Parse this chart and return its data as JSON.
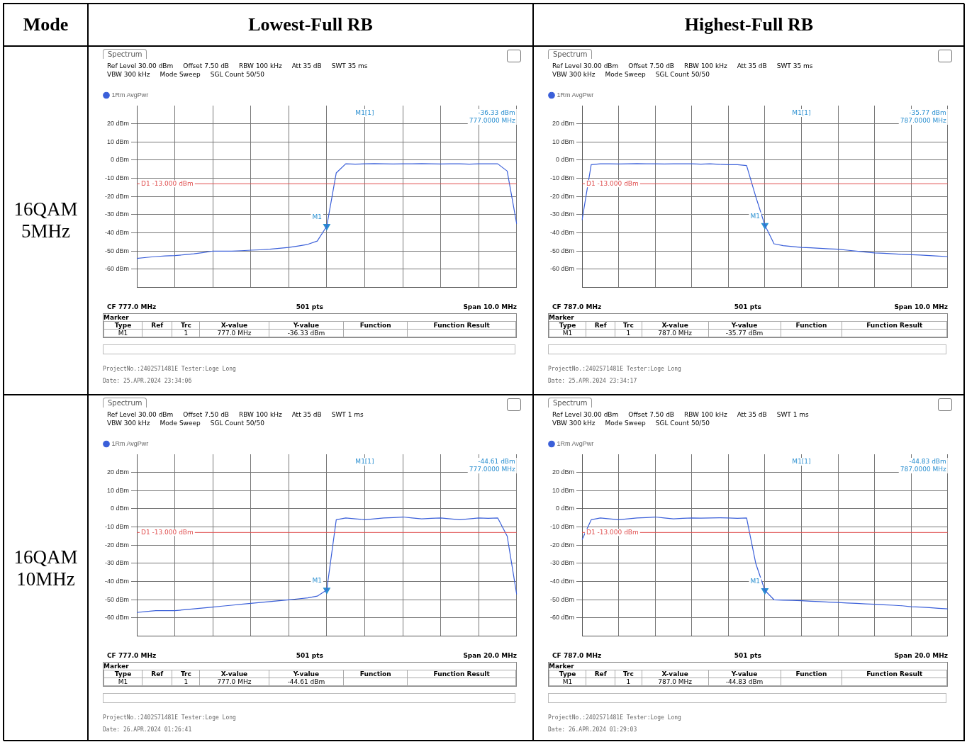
{
  "chart_data": [
    {
      "type": "line",
      "title": "Lowest-Full RB",
      "ylabel": "16QAM\n5MHz",
      "categories": [
        null,
        null,
        null,
        null,
        null,
        null,
        null,
        null,
        null,
        null,
        null,
        null,
        null,
        null,
        null,
        null,
        null,
        null,
        null,
        null,
        null,
        null,
        null,
        null,
        null,
        null,
        null,
        null,
        null,
        null,
        null,
        null,
        null,
        null,
        null,
        null,
        null,
        null,
        null,
        null,
        null
      ],
      "series": [
        {
          "name": "1Rm AvgPwr",
          "color": "#3a5fd9",
          "values": [
            -54,
            -53.5,
            -53,
            -52.7,
            -52.5,
            -52,
            -51.5,
            -50.8,
            -50,
            -50,
            -50,
            -49.8,
            -49.5,
            -49.3,
            -49,
            -48.5,
            -48,
            -47.2,
            -46.3,
            -44.5,
            -36.33,
            -7,
            -2,
            -2.2,
            -2,
            -1.9,
            -2,
            -2.1,
            -2,
            -2,
            -1.9,
            -2,
            -2.1,
            -2,
            -2,
            -2.2,
            -2,
            -2,
            -2,
            -6,
            -35
          ]
        },
        {
          "name": "M1",
          "type": "scatter",
          "marker": "triangle",
          "color": "#2a8fd0",
          "values": [
            null,
            null,
            null,
            null,
            null,
            null,
            null,
            null,
            null,
            null,
            null,
            null,
            null,
            null,
            null,
            null,
            null,
            null,
            null,
            null,
            -36.33,
            null,
            null,
            null,
            null,
            null,
            null,
            null,
            null,
            null,
            null,
            null,
            null,
            null,
            null,
            null,
            null,
            null,
            null,
            null,
            null
          ]
        }
      ],
      "ylim": [
        -70,
        30
      ],
      "yticks": [
        {
          "value": 20,
          "label": "20 dBm"
        },
        {
          "value": 10,
          "label": "10 dBm"
        },
        {
          "value": 0,
          "label": "0 dBm"
        },
        {
          "value": -10,
          "label": "-10 dBm"
        },
        {
          "value": -20,
          "label": "-20 dBm"
        },
        {
          "value": -30,
          "label": "-30 dBm"
        },
        {
          "value": -40,
          "label": "-40 dBm"
        },
        {
          "value": -50,
          "label": "-50 dBm"
        },
        {
          "value": -60,
          "label": "-60 dBm"
        }
      ],
      "grid": true,
      "legend": "top left",
      "ref_lines": [
        {
          "axis": "y",
          "value": -13,
          "label": "D1 -13.000 dBm",
          "color": "#e05050"
        }
      ],
      "annotations": [
        "Spectrum",
        "Ref Level 30.00 dBm",
        "Offset 7.50 dB",
        "RBW 100 kHz",
        "Att 35 dB",
        "SWT 35 ms",
        "VBW 300 kHz",
        "Mode Sweep",
        "SGL Count 50/50",
        "M1[1]",
        "-36.33 dBm",
        "777.0000 MHz",
        "CF 777.0 MHz",
        "501 pts",
        "Span 10.0 MHz",
        "Marker",
        "Type",
        "Ref",
        "Trc",
        "X-value",
        "Y-value",
        "Function",
        "Function Result",
        "M1",
        "1",
        "777.0 MHz",
        "-36.33 dBm",
        "ProjectNo.:2402S71481E  Tester:Loge Long",
        "Date: 25.APR.2024  23:34:06",
        "Mode"
      ]
    },
    {
      "type": "line",
      "title": "Highest-Full RB",
      "categories": [
        null,
        null,
        null,
        null,
        null,
        null,
        null,
        null,
        null,
        null,
        null,
        null,
        null,
        null,
        null,
        null,
        null,
        null,
        null,
        null,
        null,
        null,
        null,
        null,
        null,
        null,
        null,
        null,
        null,
        null,
        null,
        null,
        null,
        null,
        null,
        null,
        null,
        null,
        null,
        null,
        null
      ],
      "series": [
        {
          "name": "1Rm AvgPwr",
          "color": "#3a5fd9",
          "values": [
            -33,
            -2.5,
            -2,
            -2,
            -2.1,
            -2,
            -1.9,
            -2,
            -2,
            -2.1,
            -2,
            -2,
            -2,
            -2.2,
            -2,
            -2.3,
            -2.5,
            -2.5,
            -3,
            -20,
            -35.77,
            -46,
            -47,
            -47.5,
            -48,
            -48.2,
            -48.5,
            -48.8,
            -49,
            -49.5,
            -50,
            -50.5,
            -51,
            -51.2,
            -51.5,
            -51.8,
            -52,
            -52.2,
            -52.5,
            -52.8,
            -53
          ]
        },
        {
          "name": "M1",
          "type": "scatter",
          "marker": "triangle",
          "color": "#2a8fd0",
          "values": [
            null,
            null,
            null,
            null,
            null,
            null,
            null,
            null,
            null,
            null,
            null,
            null,
            null,
            null,
            null,
            null,
            null,
            null,
            null,
            null,
            -35.77,
            null,
            null,
            null,
            null,
            null,
            null,
            null,
            null,
            null,
            null,
            null,
            null,
            null,
            null,
            null,
            null,
            null,
            null,
            null,
            null
          ]
        }
      ],
      "ylim": [
        -70,
        30
      ],
      "yticks": [
        {
          "value": 20,
          "label": "20 dBm"
        },
        {
          "value": 10,
          "label": "10 dBm"
        },
        {
          "value": 0,
          "label": "0 dBm"
        },
        {
          "value": -10,
          "label": "-10 dBm"
        },
        {
          "value": -20,
          "label": "-20 dBm"
        },
        {
          "value": -30,
          "label": "-30 dBm"
        },
        {
          "value": -40,
          "label": "-40 dBm"
        },
        {
          "value": -50,
          "label": "-50 dBm"
        },
        {
          "value": -60,
          "label": "-60 dBm"
        }
      ],
      "grid": true,
      "legend": "top left",
      "ref_lines": [
        {
          "axis": "y",
          "value": -13,
          "label": "D1 -13.000 dBm",
          "color": "#e05050"
        }
      ],
      "annotations": [
        "Spectrum",
        "Ref Level 30.00 dBm",
        "Offset 7.50 dB",
        "RBW 100 kHz",
        "Att 35 dB",
        "SWT 35 ms",
        "VBW 300 kHz",
        "Mode Sweep",
        "SGL Count 50/50",
        "M1[1]",
        "-35.77 dBm",
        "787.0000 MHz",
        "CF 787.0 MHz",
        "501 pts",
        "Span 10.0 MHz",
        "Marker",
        "Type",
        "Ref",
        "Trc",
        "X-value",
        "Y-value",
        "Function",
        "Function Result",
        "M1",
        "1",
        "787.0 MHz",
        "-35.77 dBm",
        "ProjectNo.:2402S71481E  Tester:Loge Long",
        "Date: 25.APR.2024  23:34:17"
      ]
    },
    {
      "type": "line",
      "ylabel": "16QAM\n10MHz",
      "categories": [
        null,
        null,
        null,
        null,
        null,
        null,
        null,
        null,
        null,
        null,
        null,
        null,
        null,
        null,
        null,
        null,
        null,
        null,
        null,
        null,
        null,
        null,
        null,
        null,
        null,
        null,
        null,
        null,
        null,
        null,
        null,
        null,
        null,
        null,
        null,
        null,
        null,
        null,
        null,
        null,
        null
      ],
      "series": [
        {
          "name": "1Rm AvgPwr",
          "color": "#3a5fd9",
          "values": [
            -57,
            -56.5,
            -56,
            -56,
            -56,
            -55.5,
            -55,
            -54.5,
            -54,
            -53.5,
            -53,
            -52.5,
            -52,
            -51.5,
            -51,
            -50.5,
            -50,
            -49.5,
            -49,
            -48,
            -44.61,
            -6,
            -5,
            -5.5,
            -6,
            -5.5,
            -5,
            -4.8,
            -4.5,
            -5,
            -5.5,
            -5.2,
            -5,
            -5.5,
            -6,
            -5.5,
            -5,
            -5.2,
            -5,
            -15,
            -47
          ]
        },
        {
          "name": "M1",
          "type": "scatter",
          "marker": "triangle",
          "color": "#2a8fd0",
          "values": [
            null,
            null,
            null,
            null,
            null,
            null,
            null,
            null,
            null,
            null,
            null,
            null,
            null,
            null,
            null,
            null,
            null,
            null,
            null,
            null,
            -44.61,
            null,
            null,
            null,
            null,
            null,
            null,
            null,
            null,
            null,
            null,
            null,
            null,
            null,
            null,
            null,
            null,
            null,
            null,
            null,
            null
          ]
        }
      ],
      "ylim": [
        -70,
        30
      ],
      "yticks": [
        {
          "value": 20,
          "label": "20 dBm"
        },
        {
          "value": 10,
          "label": "10 dBm"
        },
        {
          "value": 0,
          "label": "0 dBm"
        },
        {
          "value": -10,
          "label": "-10 dBm"
        },
        {
          "value": -20,
          "label": "-20 dBm"
        },
        {
          "value": -30,
          "label": "-30 dBm"
        },
        {
          "value": -40,
          "label": "-40 dBm"
        },
        {
          "value": -50,
          "label": "-50 dBm"
        },
        {
          "value": -60,
          "label": "-60 dBm"
        }
      ],
      "grid": true,
      "legend": "top left",
      "ref_lines": [
        {
          "axis": "y",
          "value": -13,
          "label": "D1 -13.000 dBm",
          "color": "#e05050"
        }
      ],
      "annotations": [
        "Spectrum",
        "Ref Level 30.00 dBm",
        "Offset 7.50 dB",
        "RBW 100 kHz",
        "Att 35 dB",
        "SWT 1 ms",
        "VBW 300 kHz",
        "Mode Sweep",
        "SGL Count 50/50",
        "M1[1]",
        "-44.61 dBm",
        "777.0000 MHz",
        "CF 777.0 MHz",
        "501 pts",
        "Span 20.0 MHz",
        "Marker",
        "Type",
        "Ref",
        "Trc",
        "X-value",
        "Y-value",
        "Function",
        "Function Result",
        "M1",
        "1",
        "777.0 MHz",
        "-44.61 dBm",
        "ProjectNo.:2402S71481E  Tester:Loge Long",
        "Date: 26.APR.2024  01:26:41"
      ]
    },
    {
      "type": "line",
      "categories": [
        null,
        null,
        null,
        null,
        null,
        null,
        null,
        null,
        null,
        null,
        null,
        null,
        null,
        null,
        null,
        null,
        null,
        null,
        null,
        null,
        null,
        null,
        null,
        null,
        null,
        null,
        null,
        null,
        null,
        null,
        null,
        null,
        null,
        null,
        null,
        null,
        null,
        null,
        null,
        null,
        null
      ],
      "series": [
        {
          "name": "1Rm AvgPwr",
          "color": "#3a5fd9",
          "values": [
            -17,
            -6,
            -5,
            -5.5,
            -6,
            -5.5,
            -5,
            -4.8,
            -4.5,
            -5,
            -5.5,
            -5.2,
            -5,
            -5.1,
            -5,
            -4.9,
            -5,
            -5.2,
            -5,
            -30,
            -44.83,
            -50,
            -50.2,
            -50.3,
            -50.5,
            -50.8,
            -51,
            -51.3,
            -51.5,
            -51.8,
            -52,
            -52.3,
            -52.5,
            -52.8,
            -53,
            -53.3,
            -53.8,
            -54,
            -54.3,
            -54.7,
            -55
          ]
        },
        {
          "name": "M1",
          "type": "scatter",
          "marker": "triangle",
          "color": "#2a8fd0",
          "values": [
            null,
            null,
            null,
            null,
            null,
            null,
            null,
            null,
            null,
            null,
            null,
            null,
            null,
            null,
            null,
            null,
            null,
            null,
            null,
            null,
            -44.83,
            null,
            null,
            null,
            null,
            null,
            null,
            null,
            null,
            null,
            null,
            null,
            null,
            null,
            null,
            null,
            null,
            null,
            null,
            null,
            null
          ]
        }
      ],
      "ylim": [
        -70,
        30
      ],
      "yticks": [
        {
          "value": 20,
          "label": "20 dBm"
        },
        {
          "value": 10,
          "label": "10 dBm"
        },
        {
          "value": 0,
          "label": "0 dBm"
        },
        {
          "value": -10,
          "label": "-10 dBm"
        },
        {
          "value": -20,
          "label": "-20 dBm"
        },
        {
          "value": -30,
          "label": "-30 dBm"
        },
        {
          "value": -40,
          "label": "-40 dBm"
        },
        {
          "value": -50,
          "label": "-50 dBm"
        },
        {
          "value": -60,
          "label": "-60 dBm"
        }
      ],
      "grid": true,
      "legend": "top left",
      "ref_lines": [
        {
          "axis": "y",
          "value": -13,
          "label": "D1 -13.000 dBm",
          "color": "#e05050"
        }
      ],
      "annotations": [
        "Spectrum",
        "Ref Level 30.00 dBm",
        "Offset 7.50 dB",
        "RBW 100 kHz",
        "Att 35 dB",
        "SWT 1 ms",
        "VBW 300 kHz",
        "Mode Sweep",
        "SGL Count 50/50",
        "M1[1]",
        "-44.83 dBm",
        "787.0000 MHz",
        "CF 787.0 MHz",
        "501 pts",
        "Span 20.0 MHz",
        "Marker",
        "Type",
        "Ref",
        "Trc",
        "X-value",
        "Y-value",
        "Function",
        "Function Result",
        "M1",
        "1",
        "787.0 MHz",
        "-44.83 dBm",
        "ProjectNo.:2402S71481E  Tester:Loge Long",
        "Date: 26.APR.2024  01:29:03"
      ]
    }
  ]
}
